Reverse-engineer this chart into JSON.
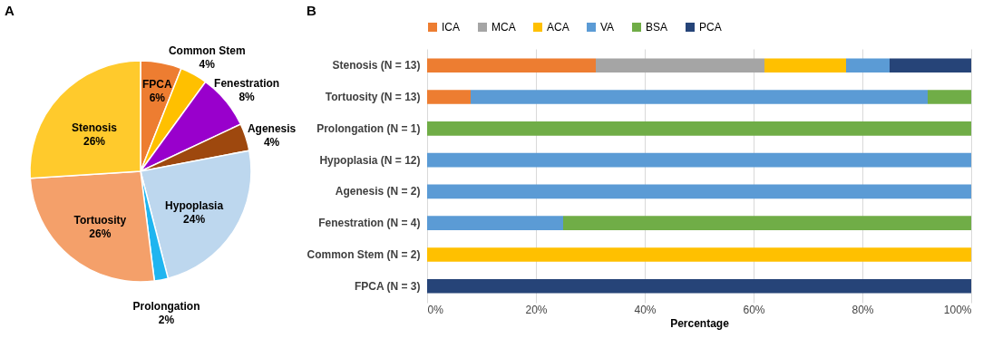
{
  "chart_data": [
    {
      "type": "pie",
      "title": "A",
      "categories": [
        "FPCA",
        "Common Stem",
        "Fenestration",
        "Agenesis",
        "Hypoplasia",
        "Prolongation",
        "Tortuosity",
        "Stenosis"
      ],
      "values": [
        6,
        4,
        8,
        4,
        24,
        2,
        26,
        26
      ],
      "colors": [
        "#ed7d31",
        "#ffc000",
        "#9900cc",
        "#9e480e",
        "#bdd7ee",
        "#1fb5f0",
        "#f4a06a",
        "#ffca2c"
      ],
      "value_labels": [
        "6%",
        "4%",
        "8%",
        "4%",
        "24%",
        "2%",
        "26%",
        "26%"
      ]
    },
    {
      "type": "bar",
      "title": "B",
      "orientation": "horizontal",
      "stacked": true,
      "categories": [
        "Stenosis (N = 13)",
        "Tortuosity (N = 13)",
        "Prolongation (N = 1)",
        "Hypoplasia (N = 12)",
        "Agenesis (N = 2)",
        "Fenestration (N = 4)",
        "Common Stem (N = 2)",
        "FPCA (N = 3)"
      ],
      "series": [
        {
          "name": "ICA",
          "color": "#ed7d31",
          "values": [
            31,
            8,
            null,
            null,
            null,
            null,
            null,
            null
          ]
        },
        {
          "name": "MCA",
          "color": "#a5a5a5",
          "values": [
            31,
            null,
            null,
            null,
            null,
            null,
            null,
            null
          ]
        },
        {
          "name": "ACA",
          "color": "#ffc000",
          "values": [
            15,
            null,
            null,
            null,
            null,
            null,
            100,
            null
          ]
        },
        {
          "name": "VA",
          "color": "#5b9bd5",
          "values": [
            8,
            84,
            null,
            100,
            100,
            25,
            null,
            null
          ]
        },
        {
          "name": "BSA",
          "color": "#70ad47",
          "values": [
            null,
            8,
            100,
            null,
            null,
            75,
            null,
            null
          ]
        },
        {
          "name": "PCA",
          "color": "#264478",
          "values": [
            15,
            null,
            null,
            null,
            null,
            null,
            null,
            100
          ]
        }
      ],
      "xlim": [
        0,
        100
      ],
      "xticks": [
        {
          "value": 0,
          "label": "0%"
        },
        {
          "value": 20,
          "label": "20%"
        },
        {
          "value": 40,
          "label": "40%"
        },
        {
          "value": 60,
          "label": "60%"
        },
        {
          "value": 80,
          "label": "80%"
        },
        {
          "value": 100,
          "label": "100%"
        }
      ],
      "xlabel": "Percentage",
      "grid": "x",
      "legend": "top"
    }
  ]
}
